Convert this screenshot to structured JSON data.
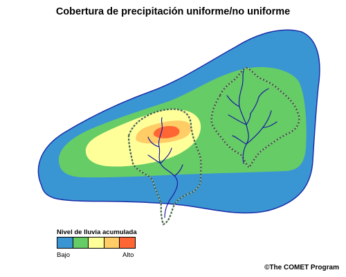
{
  "title": "Cobertura de precipitación uniforme/no uniforme",
  "legend": {
    "title": "Nivel de lluvia acumulada",
    "low_label": "Bajo",
    "high_label": "Alto",
    "colors": [
      "#3a96d3",
      "#66cc66",
      "#ffff99",
      "#ffcc66",
      "#ff6633"
    ]
  },
  "credit": "©The COMET Program",
  "colors": {
    "outline": "#1a2da8",
    "river": "#1a1aa0",
    "basin_border": "#3a5a3a"
  }
}
